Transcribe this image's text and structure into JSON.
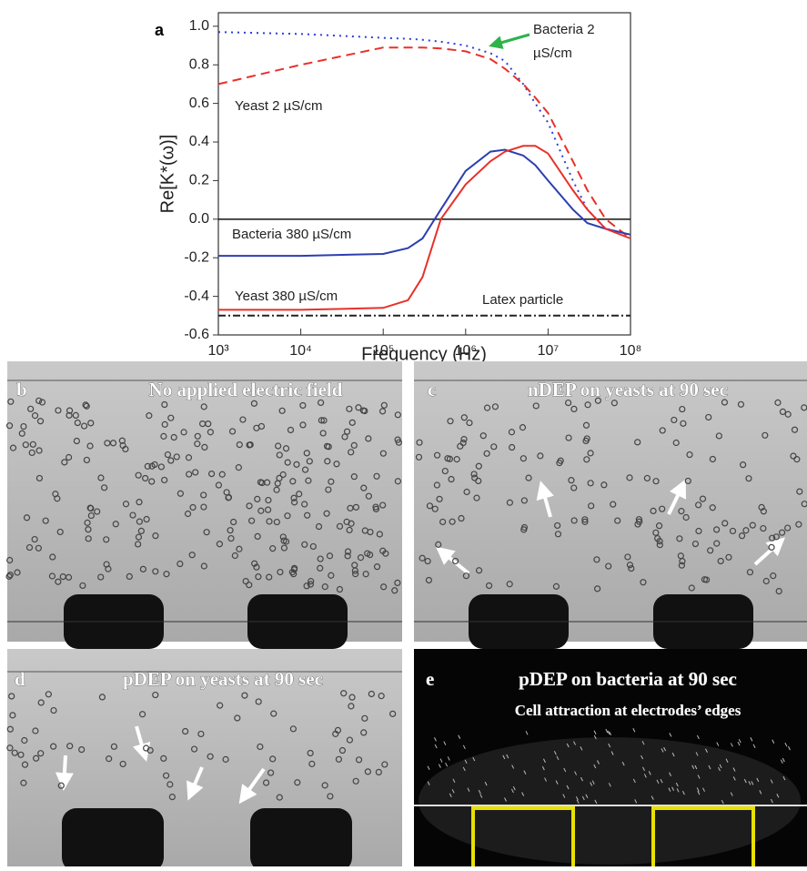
{
  "chart_data": {
    "type": "line",
    "panel_label": "a",
    "xlabel": "Frequency (Hz)",
    "ylabel": "Re[K*(ω)]",
    "xscale": "log",
    "xlim": [
      1000,
      100000000
    ],
    "xticks": [
      {
        "value": 1000,
        "label": "10³"
      },
      {
        "value": 10000,
        "label": "10⁴"
      },
      {
        "value": 100000,
        "label": "10⁵"
      },
      {
        "value": 1000000,
        "label": "10⁶"
      },
      {
        "value": 10000000,
        "label": "10⁷"
      },
      {
        "value": 100000000,
        "label": "10⁸"
      }
    ],
    "ylim": [
      -0.6,
      1.07
    ],
    "yticks": [
      -0.6,
      -0.4,
      -0.2,
      {
        "value": 0,
        "label": "0.0"
      },
      0.2,
      0.4,
      0.6,
      0.8,
      {
        "value": 1,
        "label": "1.0"
      }
    ],
    "hline": 0,
    "x": [
      1000,
      10000,
      100000,
      200000,
      300000,
      500000,
      1000000,
      2000000,
      3000000,
      5000000,
      7000000,
      10000000,
      20000000,
      30000000,
      50000000,
      100000000
    ],
    "series": [
      {
        "name": "Bacteria 2 µS/cm",
        "color": "#2b3fd6",
        "linestyle": "dotted",
        "values": [
          0.97,
          0.96,
          0.94,
          0.935,
          0.93,
          0.92,
          0.9,
          0.86,
          0.82,
          0.7,
          0.6,
          0.5,
          0.2,
          0.05,
          -0.05,
          -0.08
        ]
      },
      {
        "name": "Yeast 2 µS/cm",
        "color": "#e8302a",
        "linestyle": "dashed",
        "values": [
          0.7,
          0.8,
          0.89,
          0.89,
          0.89,
          0.885,
          0.87,
          0.83,
          0.78,
          0.7,
          0.63,
          0.55,
          0.3,
          0.15,
          0,
          -0.1
        ]
      },
      {
        "name": "Bacteria 380 µS/cm",
        "color": "#2b3fb0",
        "linestyle": "solid",
        "values": [
          -0.19,
          -0.19,
          -0.18,
          -0.15,
          -0.1,
          0.05,
          0.25,
          0.35,
          0.36,
          0.33,
          0.28,
          0.2,
          0.05,
          -0.02,
          -0.05,
          -0.08
        ]
      },
      {
        "name": "Yeast 380 µS/cm",
        "color": "#e8302a",
        "linestyle": "solid",
        "values": [
          -0.47,
          -0.47,
          -0.46,
          -0.42,
          -0.3,
          0,
          0.18,
          0.3,
          0.35,
          0.38,
          0.38,
          0.34,
          0.15,
          0.05,
          -0.05,
          -0.1
        ]
      },
      {
        "name": "Latex particle",
        "color": "#222222",
        "linestyle": "dashdot",
        "values": [
          -0.5,
          -0.5,
          -0.5,
          -0.5,
          -0.5,
          -0.5,
          -0.5,
          -0.5,
          -0.5,
          -0.5,
          -0.5,
          -0.5,
          -0.5,
          -0.5,
          -0.5,
          -0.5
        ]
      }
    ]
  },
  "panels": [
    {
      "label": "b",
      "caption": "No applied electric field"
    },
    {
      "label": "c",
      "caption": "nDEP on yeasts at 90 sec"
    },
    {
      "label": "d",
      "caption": "pDEP on yeasts at 90 sec"
    },
    {
      "label": "e",
      "caption": "pDEP on bacteria at 90 sec",
      "subcaption": "Cell attraction at electrodes’ edges"
    }
  ]
}
